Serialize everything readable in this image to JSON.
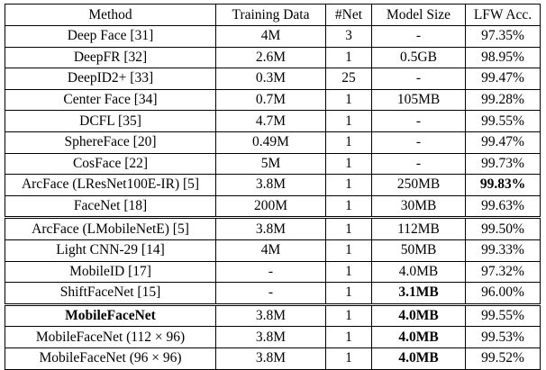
{
  "columns": [
    "Method",
    "Training Data",
    "#Net",
    "Model Size",
    "LFW Acc."
  ],
  "rows": [
    {
      "method": "Deep Face [31]",
      "data": "4M",
      "net": "3",
      "size": "-",
      "acc": "97.35%"
    },
    {
      "method": "DeepFR [32]",
      "data": "2.6M",
      "net": "1",
      "size": "0.5GB",
      "acc": "98.95%"
    },
    {
      "method": "DeepID2+ [33]",
      "data": "0.3M",
      "net": "25",
      "size": "-",
      "acc": "99.47%"
    },
    {
      "method": "Center Face [34]",
      "data": "0.7M",
      "net": "1",
      "size": "105MB",
      "acc": "99.28%"
    },
    {
      "method": "DCFL [35]",
      "data": "4.7M",
      "net": "1",
      "size": "-",
      "acc": "99.55%"
    },
    {
      "method": "SphereFace [20]",
      "data": "0.49M",
      "net": "1",
      "size": "-",
      "acc": "99.47%"
    },
    {
      "method": "CosFace [22]",
      "data": "5M",
      "net": "1",
      "size": "-",
      "acc": "99.73%"
    },
    {
      "method": "ArcFace (LResNet100E-IR) [5]",
      "data": "3.8M",
      "net": "1",
      "size": "250MB",
      "acc": "99.83%"
    },
    {
      "method": "FaceNet [18]",
      "data": "200M",
      "net": "1",
      "size": "30MB",
      "acc": "99.63%"
    },
    {
      "method": "ArcFace (LMobileNetE) [5]",
      "data": "3.8M",
      "net": "1",
      "size": "112MB",
      "acc": "99.50%"
    },
    {
      "method": "Light CNN-29 [14]",
      "data": "4M",
      "net": "1",
      "size": "50MB",
      "acc": "99.33%"
    },
    {
      "method": "MobileID [17]",
      "data": "-",
      "net": "1",
      "size": "4.0MB",
      "acc": "97.32%"
    },
    {
      "method": "ShiftFaceNet [15]",
      "data": "-",
      "net": "1",
      "size": "3.1MB",
      "acc": "96.00%"
    },
    {
      "method": "MobileFaceNet",
      "data": "3.8M",
      "net": "1",
      "size": "4.0MB",
      "acc": "99.55%"
    },
    {
      "method": "MobileFaceNet (112 × 96)",
      "data": "3.8M",
      "net": "1",
      "size": "4.0MB",
      "acc": "99.53%"
    },
    {
      "method": "MobileFaceNet (96 × 96)",
      "data": "3.8M",
      "net": "1",
      "size": "4.0MB",
      "acc": "99.52%"
    }
  ]
}
